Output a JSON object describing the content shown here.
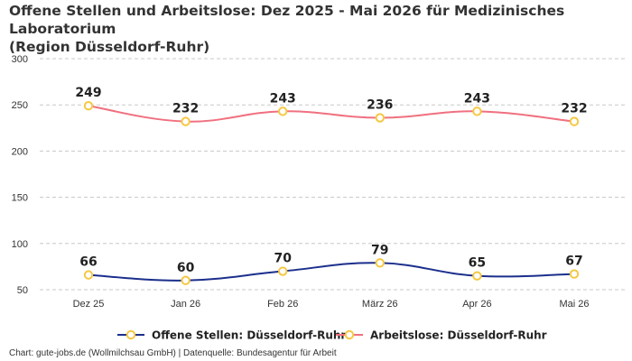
{
  "chart_data": {
    "type": "line",
    "title_line1": "Offene Stellen und Arbeitslose: Dez 2025 - Mai 2026 für Medizinisches Laboratorium",
    "title_line2": "(Region Düsseldorf-Ruhr)",
    "categories": [
      "Dez 25",
      "Jan 26",
      "Feb 26",
      "März 26",
      "Apr 26",
      "Mai 26"
    ],
    "yticks": [
      50,
      100,
      150,
      200,
      250,
      300
    ],
    "ylim": [
      50,
      300
    ],
    "grid": true,
    "legend_position": "bottom",
    "series": [
      {
        "name": "Offene Stellen: Düsseldorf-Ruhr",
        "values": [
          66,
          60,
          70,
          79,
          65,
          67
        ],
        "color": "#1b2f8c"
      },
      {
        "name": "Arbeitslose: Düsseldorf-Ruhr",
        "values": [
          249,
          232,
          243,
          236,
          243,
          232
        ],
        "color": "#f0707f"
      }
    ],
    "marker_color": "#f5c842"
  },
  "footer": "Chart: gute-jobs.de (Wollmilchsau GmbH) | Datenquelle: Bundesagentur für Arbeit"
}
